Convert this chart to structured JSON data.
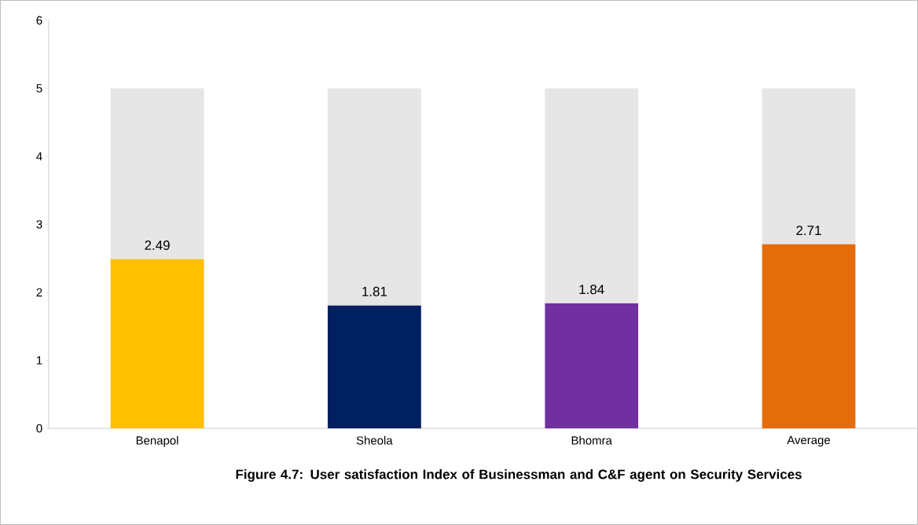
{
  "chart_data": {
    "type": "bar",
    "title": "Figure 4.7: User satisfaction Index of Businessman and C&F agent on Security Services",
    "categories": [
      "Benapol",
      "Sheola",
      "Bhomra",
      "Average"
    ],
    "series": [
      {
        "values": [
          2.49,
          1.81,
          1.84,
          2.71
        ],
        "colors": [
          "#ffc000",
          "#002060",
          "#7030a0",
          "#e46c0a"
        ],
        "value_labels": [
          "2.49",
          "1.81",
          "1.84",
          "2.71"
        ]
      },
      {
        "values": [
          2.51,
          3.19,
          3.16,
          2.29
        ],
        "color": "#e6e6e6"
      }
    ],
    "stacked": true,
    "ylim": [
      0,
      6
    ],
    "yticks": [
      0,
      1,
      2,
      3,
      4,
      5,
      6
    ]
  }
}
